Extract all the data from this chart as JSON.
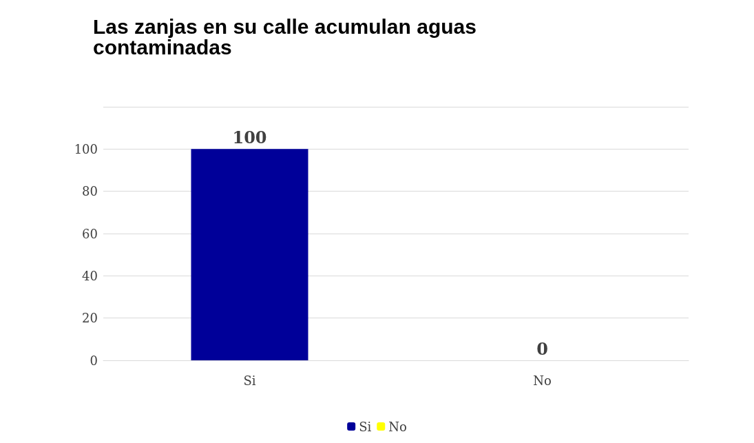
{
  "chart_data": {
    "type": "bar",
    "title": "Las zanjas en su calle acumulan aguas contaminadas",
    "categories": [
      "Si",
      "No"
    ],
    "series": [
      {
        "name": "Si",
        "color": "#000099",
        "values": [
          100,
          null
        ]
      },
      {
        "name": "No",
        "color": "#ffff00",
        "values": [
          null,
          0
        ]
      }
    ],
    "ylim": [
      0,
      120
    ],
    "yticks": [
      0,
      20,
      40,
      60,
      80,
      100,
      {
        "value": 120,
        "label": null
      }
    ],
    "grid": "y",
    "legend": "bottom",
    "data_labels": true
  }
}
